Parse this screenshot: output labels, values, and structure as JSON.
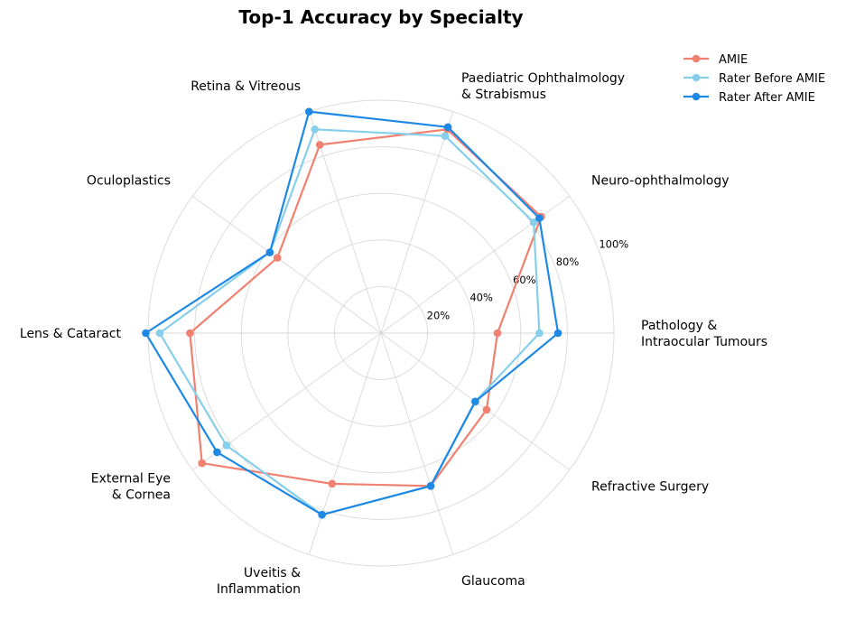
{
  "chart_data": {
    "type": "radar",
    "title": "Top-1 Accuracy by Specialty",
    "categories": [
      "Pathology & Intraocular Tumours",
      "Neuro-ophthalmology",
      "Paediatric Ophthalmology & Strabismus",
      "Retina & Vitreous",
      "Oculoplastics",
      "Lens & Cataract",
      "External Eye & Cornea",
      "Uveitis & Inflammation",
      "Glaucoma",
      "Refractive Surgery"
    ],
    "category_label_lines": [
      [
        "Pathology &",
        "Intraocular Tumours"
      ],
      [
        "Neuro-ophthalmology"
      ],
      [
        "Paediatric Ophthalmology",
        "& Strabismus"
      ],
      [
        "Retina & Vitreous"
      ],
      [
        "Oculoplastics"
      ],
      [
        "Lens & Cataract"
      ],
      [
        "External Eye",
        "& Cornea"
      ],
      [
        "Uveitis &",
        "Inflammation"
      ],
      [
        "Glaucoma"
      ],
      [
        "Refractive Surgery"
      ]
    ],
    "rlim": [
      0,
      100
    ],
    "rticks": [
      20,
      40,
      60,
      80,
      100
    ],
    "rtick_labels": [
      "20%",
      "40%",
      "60%",
      "80%",
      "100%"
    ],
    "grid": true,
    "legend_position": "top-right",
    "series": [
      {
        "name": "AMIE",
        "color": "#F08070",
        "values": [
          50,
          85,
          92,
          85,
          55,
          82,
          95,
          68,
          69,
          56
        ]
      },
      {
        "name": "Rater Before AMIE",
        "color": "#87CEEB",
        "values": [
          68,
          81,
          89,
          92,
          59,
          95,
          82,
          82,
          69,
          50
        ]
      },
      {
        "name": "Rater After AMIE",
        "color": "#1E88E5",
        "values": [
          76,
          84,
          93,
          100,
          59,
          101,
          87,
          82,
          69,
          50
        ]
      }
    ]
  }
}
